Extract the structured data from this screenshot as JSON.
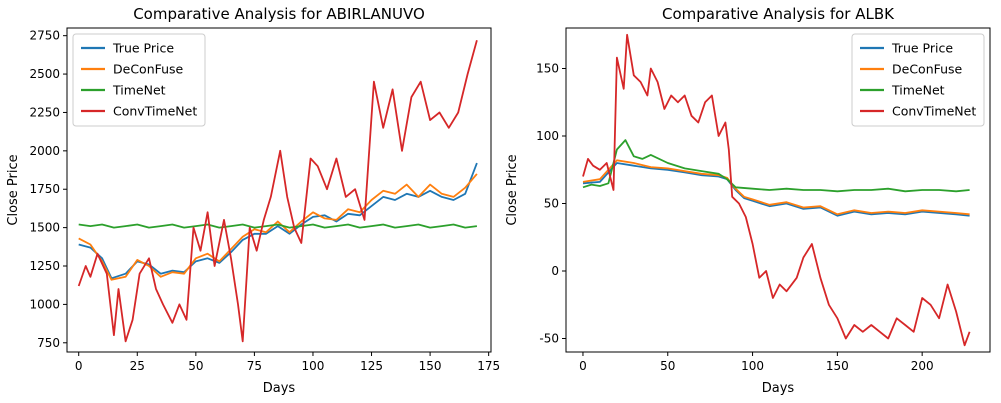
{
  "chart_data": [
    {
      "type": "line",
      "title": "Comparative Analysis for ABIRLANUVO",
      "xlabel": "Days",
      "ylabel": "Close Price",
      "xlim": [
        -5,
        176
      ],
      "ylim": [
        690,
        2800
      ],
      "xticks": [
        0,
        25,
        50,
        75,
        100,
        125,
        150,
        175
      ],
      "yticks": [
        750,
        1000,
        1250,
        1500,
        1750,
        2000,
        2250,
        2500,
        2750
      ],
      "legend_position": "top-left",
      "grid": false,
      "series": [
        {
          "name": "True Price",
          "color": "#1f77b4",
          "x": [
            0,
            5,
            10,
            14,
            20,
            25,
            30,
            35,
            40,
            45,
            50,
            55,
            60,
            65,
            70,
            75,
            80,
            85,
            90,
            95,
            100,
            105,
            110,
            115,
            120,
            125,
            130,
            135,
            140,
            145,
            150,
            155,
            160,
            165,
            170
          ],
          "y": [
            1390,
            1370,
            1300,
            1170,
            1200,
            1280,
            1260,
            1200,
            1220,
            1210,
            1280,
            1300,
            1270,
            1340,
            1420,
            1460,
            1460,
            1510,
            1460,
            1520,
            1570,
            1580,
            1540,
            1590,
            1580,
            1640,
            1700,
            1680,
            1720,
            1700,
            1740,
            1700,
            1680,
            1720,
            1920
          ]
        },
        {
          "name": "DeConFuse",
          "color": "#ff7f0e",
          "x": [
            0,
            5,
            10,
            14,
            20,
            25,
            30,
            35,
            40,
            45,
            50,
            55,
            60,
            65,
            70,
            75,
            80,
            85,
            90,
            95,
            100,
            105,
            110,
            115,
            120,
            125,
            130,
            135,
            140,
            145,
            150,
            155,
            160,
            165,
            170
          ],
          "y": [
            1430,
            1390,
            1280,
            1160,
            1180,
            1290,
            1250,
            1180,
            1210,
            1200,
            1300,
            1330,
            1280,
            1360,
            1440,
            1490,
            1470,
            1540,
            1470,
            1540,
            1600,
            1560,
            1550,
            1620,
            1600,
            1680,
            1740,
            1720,
            1780,
            1700,
            1780,
            1720,
            1700,
            1760,
            1850
          ]
        },
        {
          "name": "TimeNet",
          "color": "#2ca02c",
          "x": [
            0,
            5,
            10,
            15,
            20,
            25,
            30,
            35,
            40,
            45,
            50,
            55,
            60,
            65,
            70,
            75,
            80,
            85,
            90,
            95,
            100,
            105,
            110,
            115,
            120,
            125,
            130,
            135,
            140,
            145,
            150,
            155,
            160,
            165,
            170
          ],
          "y": [
            1520,
            1510,
            1520,
            1500,
            1510,
            1520,
            1500,
            1510,
            1520,
            1500,
            1510,
            1520,
            1500,
            1510,
            1520,
            1500,
            1510,
            1520,
            1500,
            1510,
            1520,
            1500,
            1510,
            1520,
            1500,
            1510,
            1520,
            1500,
            1510,
            1520,
            1500,
            1510,
            1520,
            1500,
            1510
          ]
        },
        {
          "name": "ConvTimeNet",
          "color": "#d62728",
          "x": [
            0,
            3,
            5,
            8,
            12,
            15,
            17,
            20,
            23,
            26,
            30,
            33,
            36,
            40,
            43,
            46,
            49,
            52,
            55,
            58,
            62,
            65,
            68,
            70,
            73,
            76,
            79,
            82,
            86,
            89,
            92,
            95,
            99,
            102,
            106,
            110,
            114,
            118,
            122,
            126,
            130,
            134,
            138,
            142,
            146,
            150,
            154,
            158,
            162,
            166,
            170
          ],
          "y": [
            1120,
            1250,
            1180,
            1330,
            1200,
            800,
            1100,
            760,
            900,
            1200,
            1300,
            1100,
            1000,
            880,
            1000,
            900,
            1500,
            1350,
            1600,
            1250,
            1550,
            1300,
            1000,
            760,
            1500,
            1350,
            1550,
            1700,
            2000,
            1700,
            1500,
            1400,
            1950,
            1900,
            1750,
            1950,
            1700,
            1750,
            1550,
            2450,
            2150,
            2400,
            2000,
            2350,
            2450,
            2200,
            2250,
            2150,
            2250,
            2500,
            2720
          ]
        }
      ]
    },
    {
      "type": "line",
      "title": "Comparative Analysis for ALBK",
      "xlabel": "Days",
      "ylabel": "Close Price",
      "xlim": [
        -10,
        240
      ],
      "ylim": [
        -60,
        180
      ],
      "xticks": [
        0,
        50,
        100,
        150,
        200
      ],
      "yticks": [
        -50,
        0,
        50,
        100,
        150
      ],
      "legend_position": "top-right",
      "grid": false,
      "series": [
        {
          "name": "True Price",
          "color": "#1f77b4",
          "x": [
            0,
            10,
            20,
            30,
            40,
            50,
            60,
            70,
            80,
            85,
            90,
            95,
            100,
            110,
            120,
            130,
            140,
            150,
            160,
            170,
            180,
            190,
            200,
            210,
            220,
            228
          ],
          "y": [
            65,
            66,
            80,
            78,
            76,
            75,
            73,
            71,
            70,
            68,
            60,
            54,
            52,
            48,
            50,
            46,
            47,
            41,
            44,
            42,
            43,
            42,
            44,
            43,
            42,
            41
          ]
        },
        {
          "name": "DeConFuse",
          "color": "#ff7f0e",
          "x": [
            0,
            10,
            20,
            30,
            40,
            50,
            60,
            70,
            80,
            85,
            90,
            95,
            100,
            110,
            120,
            130,
            140,
            150,
            160,
            170,
            180,
            190,
            200,
            210,
            220,
            228
          ],
          "y": [
            66,
            68,
            82,
            80,
            77,
            76,
            74,
            72,
            71,
            69,
            61,
            55,
            53,
            49,
            51,
            47,
            48,
            42,
            45,
            43,
            44,
            43,
            45,
            44,
            43,
            42
          ]
        },
        {
          "name": "TimeNet",
          "color": "#2ca02c",
          "x": [
            0,
            5,
            10,
            15,
            20,
            25,
            30,
            35,
            40,
            50,
            60,
            70,
            80,
            85,
            90,
            100,
            110,
            120,
            130,
            140,
            150,
            160,
            170,
            180,
            190,
            200,
            210,
            220,
            228
          ],
          "y": [
            62,
            64,
            63,
            65,
            90,
            97,
            85,
            83,
            86,
            80,
            76,
            74,
            72,
            68,
            62,
            61,
            60,
            61,
            60,
            60,
            59,
            60,
            60,
            61,
            59,
            60,
            60,
            59,
            60
          ]
        },
        {
          "name": "ConvTimeNet",
          "color": "#d62728",
          "x": [
            0,
            3,
            6,
            10,
            14,
            18,
            20,
            24,
            26,
            30,
            34,
            38,
            40,
            44,
            48,
            52,
            56,
            60,
            64,
            68,
            72,
            76,
            80,
            84,
            86,
            88,
            92,
            96,
            100,
            104,
            108,
            112,
            116,
            120,
            126,
            130,
            135,
            140,
            145,
            150,
            155,
            160,
            165,
            170,
            175,
            180,
            185,
            190,
            195,
            200,
            205,
            210,
            215,
            220,
            225,
            228
          ],
          "y": [
            70,
            83,
            78,
            75,
            80,
            60,
            158,
            135,
            175,
            145,
            140,
            130,
            150,
            140,
            120,
            130,
            125,
            130,
            115,
            110,
            125,
            130,
            100,
            110,
            90,
            55,
            50,
            40,
            20,
            -5,
            0,
            -20,
            -10,
            -15,
            -5,
            10,
            20,
            -5,
            -25,
            -35,
            -50,
            -40,
            -45,
            -40,
            -45,
            -50,
            -35,
            -40,
            -45,
            -20,
            -25,
            -35,
            -10,
            -30,
            -55,
            -45
          ]
        }
      ]
    }
  ]
}
